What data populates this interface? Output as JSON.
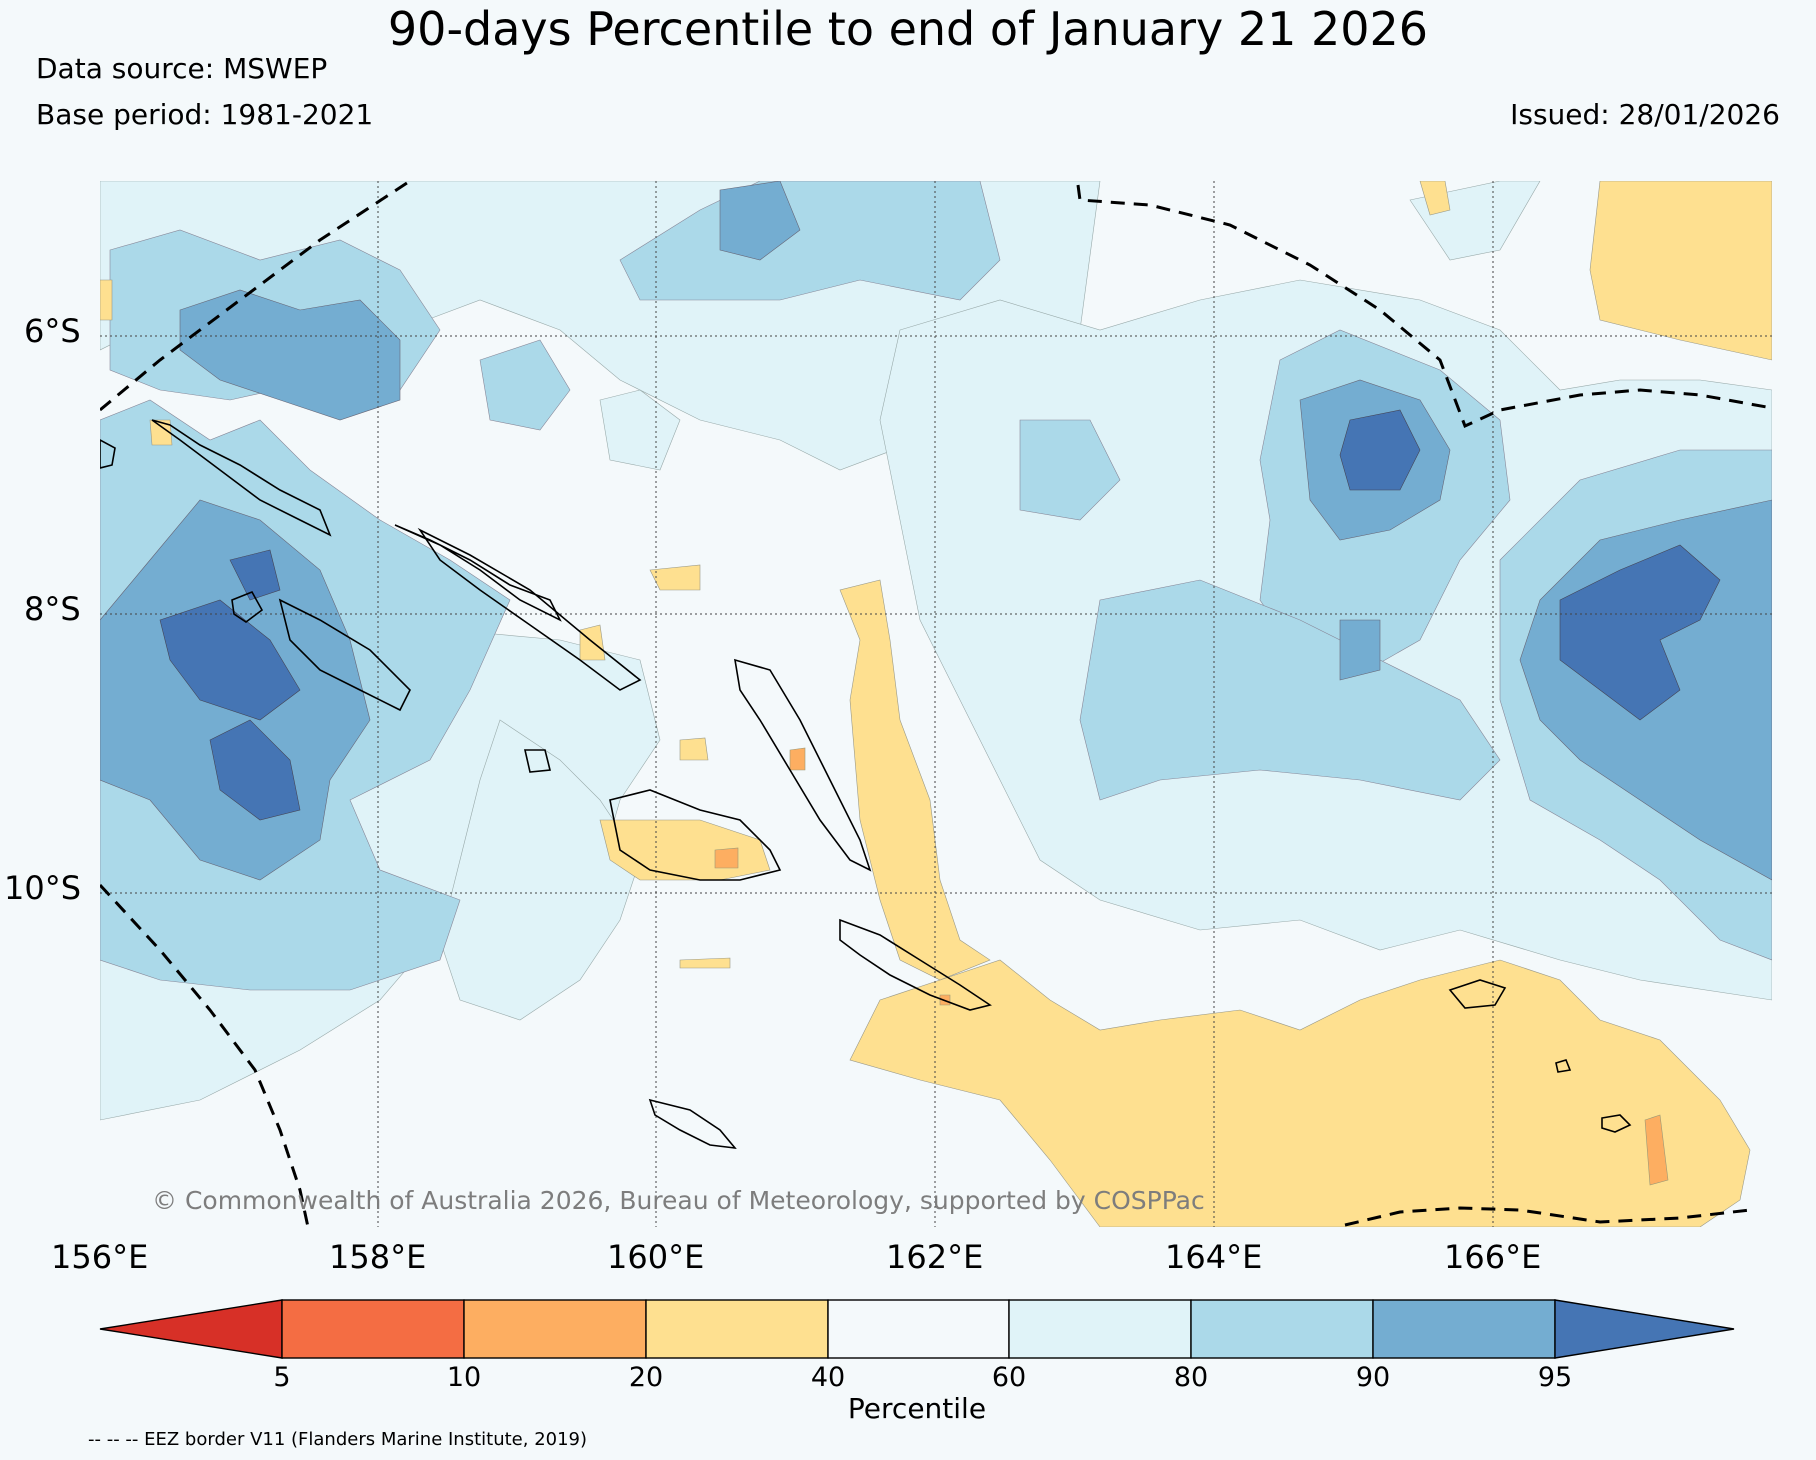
{
  "title": "90-days Percentile to end of January 21 2026",
  "data_source": "Data source: MSWEP",
  "base_period": "Base period: 1981-2021",
  "issued": "Issued: 28/01/2026",
  "copyright": "© Commonwealth of Australia 2026, Bureau of Meteorology, supported by COSPPac",
  "eez_note": "-- -- -- EEZ border V11 (Flanders Marine Institute, 2019)",
  "map": {
    "lon_range": [
      156,
      168
    ],
    "lat_range": [
      -12.4,
      -4.9
    ],
    "lat_labels": [
      "6°S",
      "8°S",
      "10°S"
    ],
    "lon_labels": [
      "156°E",
      "158°E",
      "160°E",
      "162°E",
      "164°E",
      "166°E"
    ],
    "islands": [
      "Bougainville",
      "Choiseul",
      "Santa Isabel",
      "New Georgia",
      "Guadalcanal",
      "Malaita",
      "Makira",
      "Rennell",
      "Santa Cruz Islands"
    ]
  },
  "colorbar": {
    "label": "Percentile",
    "ticks": [
      "5",
      "10",
      "20",
      "40",
      "60",
      "80",
      "90",
      "95"
    ],
    "colors": {
      "below_5": "#d73027",
      "p5_10": "#f46d43",
      "p10_20": "#fdae61",
      "p20_40": "#fee090",
      "p40_60": "#f4f9fb",
      "p60_80": "#e0f3f8",
      "p80_90": "#abd9e9",
      "p90_95": "#74add1",
      "above_95": "#4575b4"
    }
  }
}
